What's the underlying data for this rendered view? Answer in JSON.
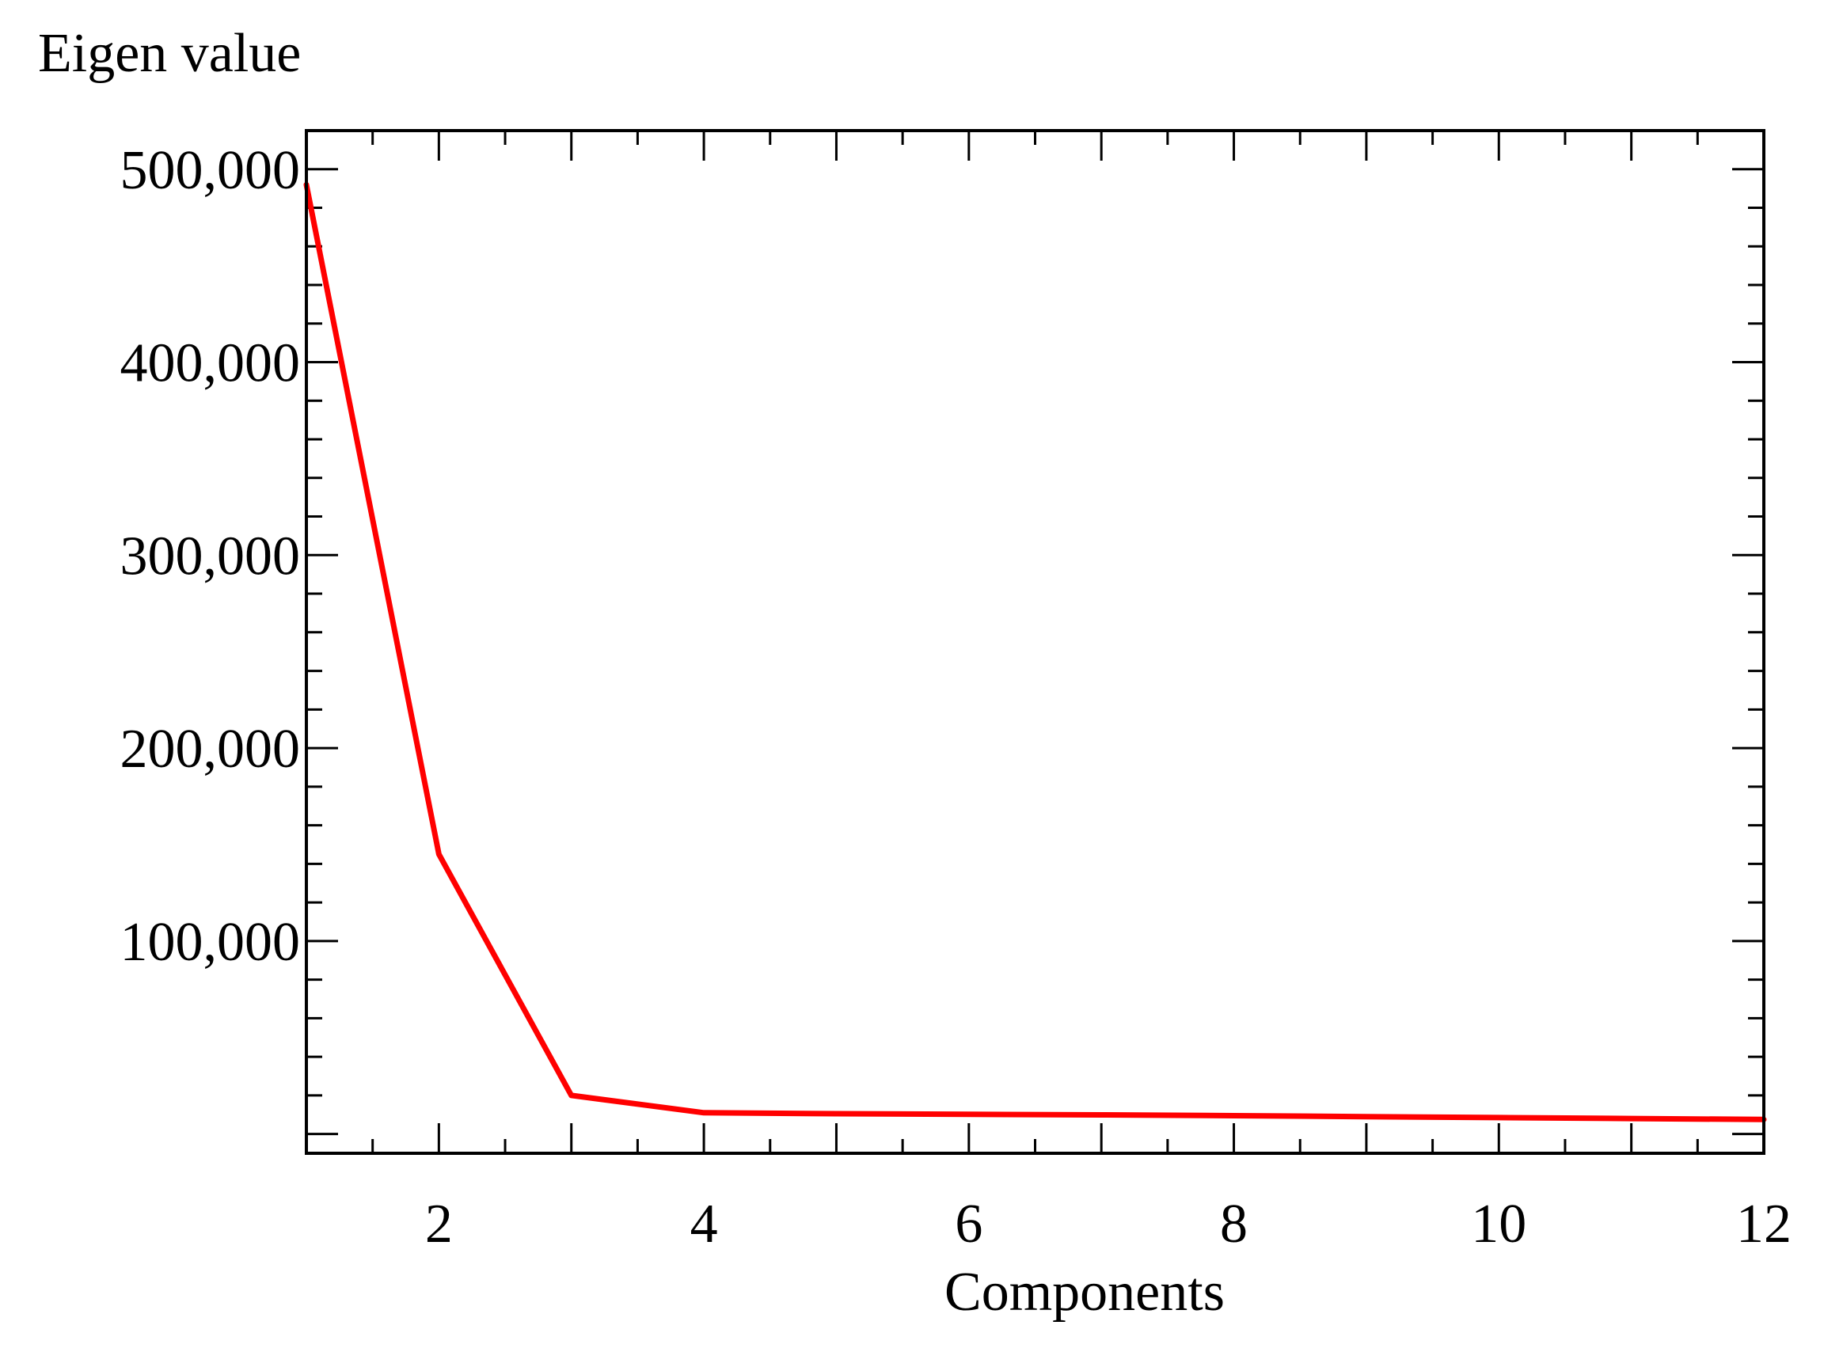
{
  "chart_data": {
    "type": "line",
    "title": "",
    "xlabel": "Components",
    "ylabel": "Eigen value",
    "x": [
      1,
      2,
      3,
      4,
      5,
      6,
      7,
      8,
      9,
      10,
      11,
      12
    ],
    "series": [
      {
        "values": [
          492000,
          145000,
          20000,
          11000,
          10500,
          10200,
          9900,
          9500,
          9000,
          8500,
          8000,
          7500
        ],
        "color": "#ff0000"
      }
    ],
    "xlim": [
      1,
      12
    ],
    "ylim": [
      -10000,
      520000
    ],
    "xticks": [
      2,
      4,
      6,
      8,
      10,
      12
    ],
    "xtick_labels": [
      "2",
      "4",
      "6",
      "8",
      "10",
      "12"
    ],
    "yticks": [
      100000,
      200000,
      300000,
      400000,
      500000
    ],
    "ytick_labels": [
      "100,000",
      "200,000",
      "300,000",
      "400,000",
      "500,000"
    ],
    "grid": false,
    "legend": "none"
  }
}
